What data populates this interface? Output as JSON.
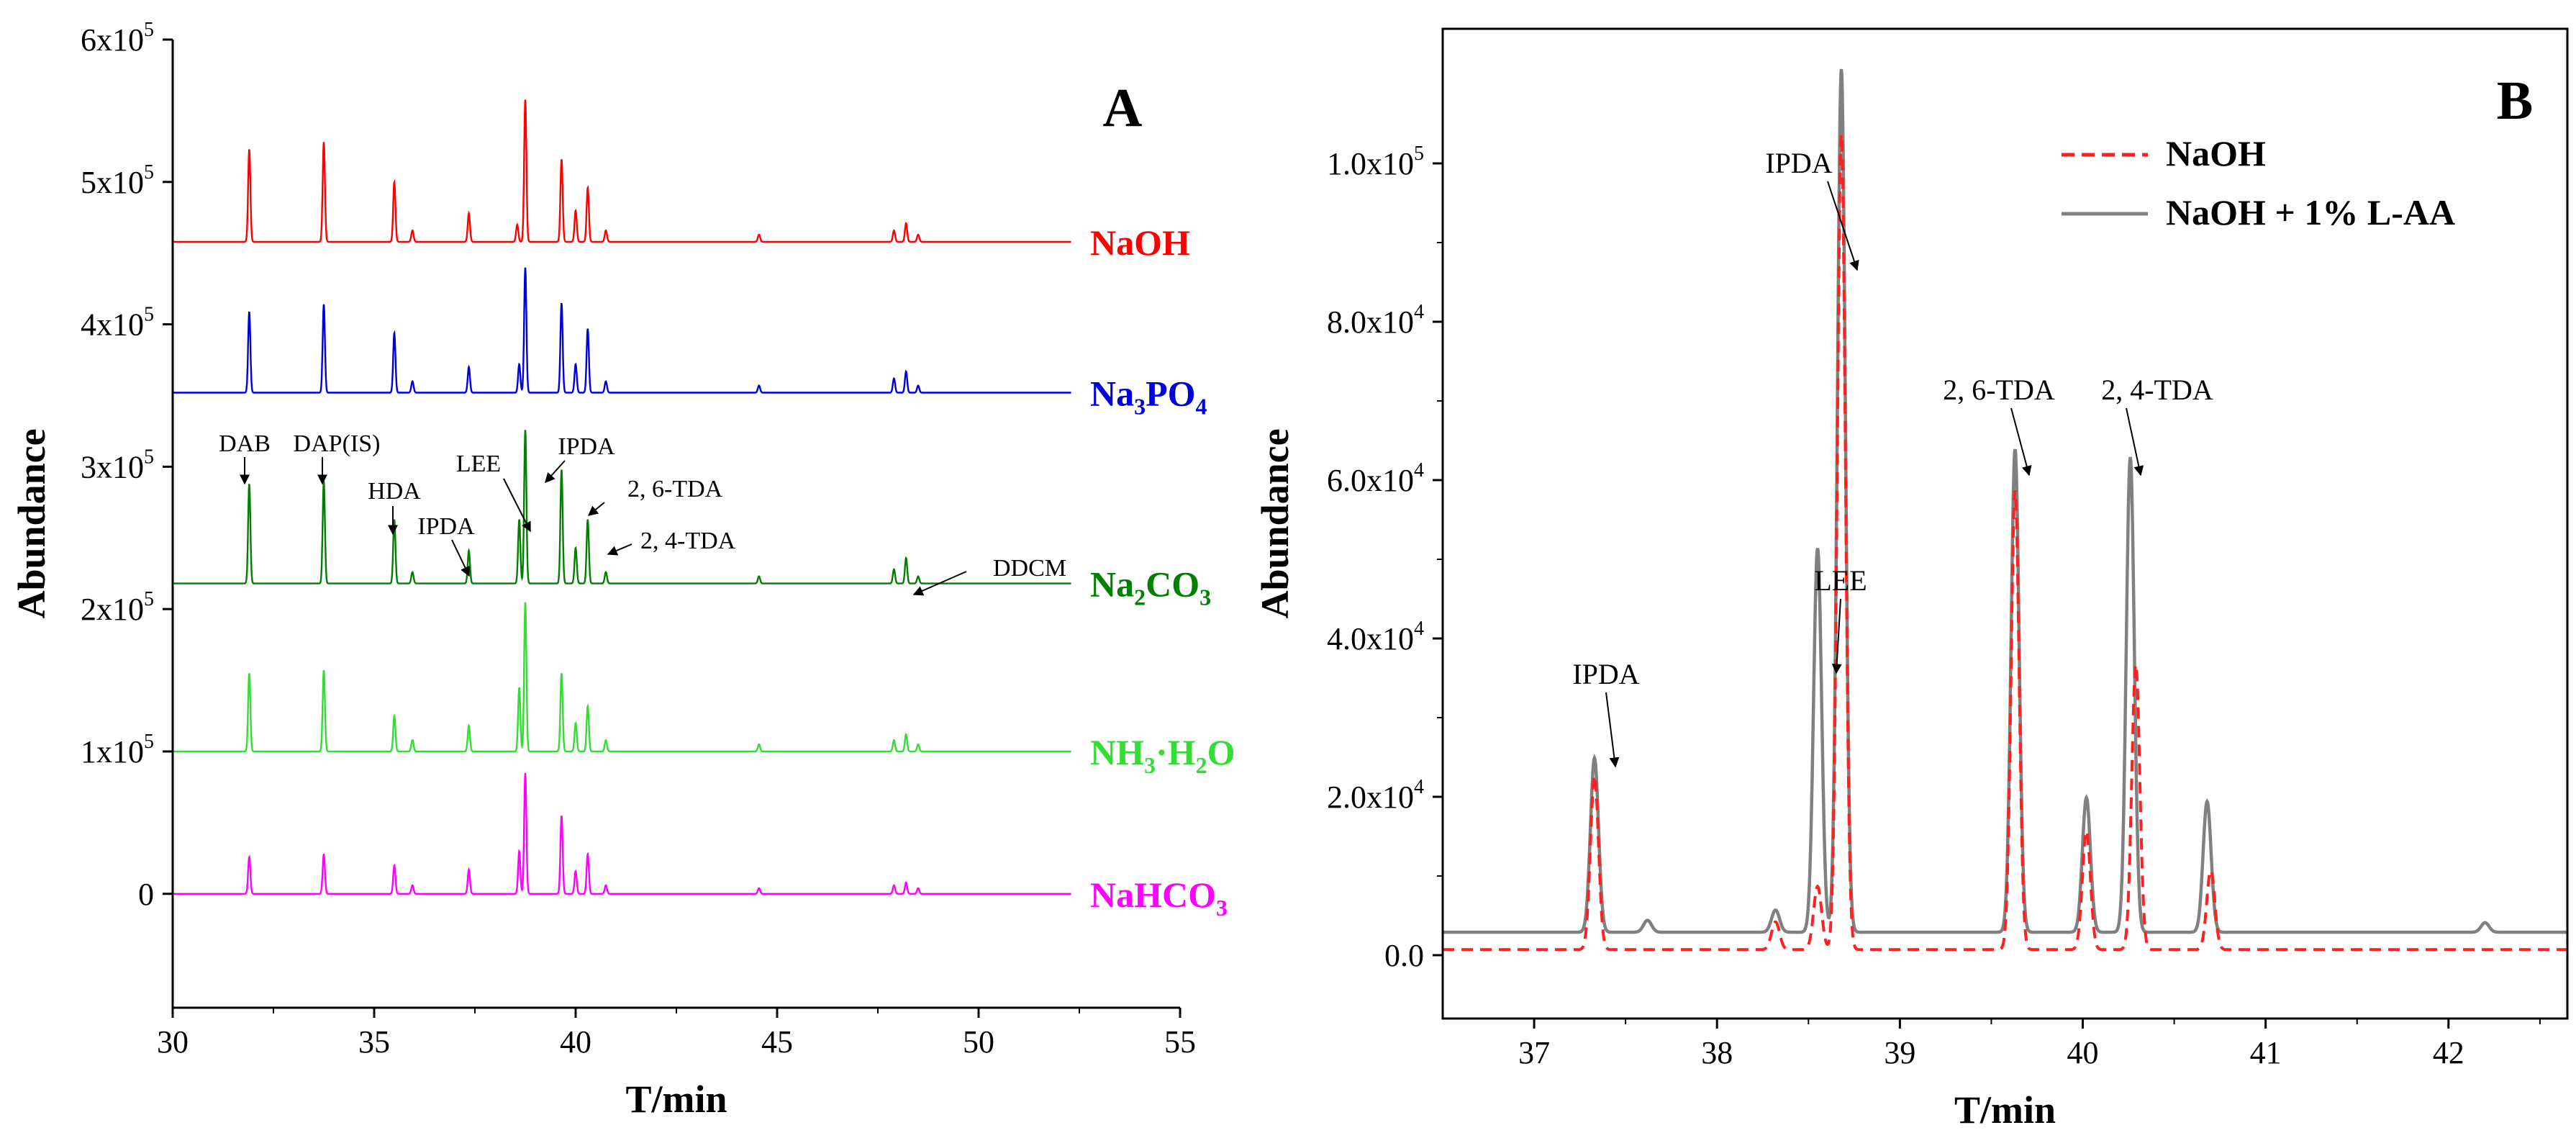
{
  "chart_data": [
    {
      "type": "line",
      "panel_label": "A",
      "xlabel": "T/min",
      "ylabel": "Abundance",
      "xlim": [
        30,
        55
      ],
      "ylim": [
        -80000,
        600000
      ],
      "x_ticks": [
        30,
        35,
        40,
        45,
        50,
        55
      ],
      "x_tick_labels": [
        "30",
        "35",
        "40",
        "45",
        "50",
        "55"
      ],
      "y_ticks": [
        0,
        100000,
        200000,
        300000,
        400000,
        500000,
        600000
      ],
      "y_tick_labels": [
        {
          "base": "0",
          "exp": ""
        },
        {
          "base": "1x10",
          "exp": "5"
        },
        {
          "base": "2x10",
          "exp": "5"
        },
        {
          "base": "3x10",
          "exp": "5"
        },
        {
          "base": "4x10",
          "exp": "5"
        },
        {
          "base": "5x10",
          "exp": "5"
        },
        {
          "base": "6x10",
          "exp": "5"
        }
      ],
      "x_end": 52.3,
      "series": [
        {
          "name": "NaOH",
          "label_main": "NaOH",
          "label_sub": "",
          "label_tail": "",
          "color": "#ff0000",
          "baseline": 458000,
          "peaks": [
            [
              31.9,
              65000
            ],
            [
              33.75,
              70000
            ],
            [
              35.5,
              42000
            ],
            [
              35.95,
              8000
            ],
            [
              37.35,
              20000
            ],
            [
              38.55,
              12000
            ],
            [
              38.75,
              100000
            ],
            [
              39.65,
              58000
            ],
            [
              40.0,
              22000
            ],
            [
              40.3,
              38000
            ],
            [
              40.75,
              8000
            ],
            [
              44.55,
              5000
            ],
            [
              47.9,
              8000
            ],
            [
              48.2,
              13000
            ],
            [
              48.5,
              5000
            ]
          ]
        },
        {
          "name": "Na3PO4",
          "label_main": "Na",
          "label_sub": "3",
          "label_tail": "PO",
          "label_sub2": "4",
          "color": "#0000dd",
          "baseline": 352000,
          "peaks": [
            [
              31.9,
              57000
            ],
            [
              33.75,
              62000
            ],
            [
              35.5,
              42000
            ],
            [
              35.95,
              8000
            ],
            [
              37.35,
              18000
            ],
            [
              38.6,
              20000
            ],
            [
              38.75,
              88000
            ],
            [
              39.65,
              63000
            ],
            [
              40.0,
              20000
            ],
            [
              40.3,
              45000
            ],
            [
              40.75,
              8000
            ],
            [
              44.55,
              5000
            ],
            [
              47.9,
              10000
            ],
            [
              48.2,
              15000
            ],
            [
              48.5,
              5000
            ]
          ]
        },
        {
          "name": "Na2CO3",
          "label_main": "Na",
          "label_sub": "2",
          "label_tail": "CO",
          "label_sub2": "3",
          "color": "#008000",
          "baseline": 218000,
          "peaks": [
            [
              31.9,
              70000
            ],
            [
              33.75,
              72000
            ],
            [
              35.5,
              45000
            ],
            [
              35.95,
              8000
            ],
            [
              37.35,
              23000
            ],
            [
              38.6,
              45000
            ],
            [
              38.75,
              108000
            ],
            [
              39.65,
              80000
            ],
            [
              40.0,
              25000
            ],
            [
              40.3,
              45000
            ],
            [
              40.75,
              8000
            ],
            [
              44.55,
              5000
            ],
            [
              47.9,
              10000
            ],
            [
              48.2,
              18000
            ],
            [
              48.5,
              5000
            ]
          ]
        },
        {
          "name": "NH3·H2O",
          "label_main": "NH",
          "label_sub": "3",
          "label_tail": "·H",
          "label_sub2": "2",
          "label_tail2": "O",
          "color": "#33dd33",
          "baseline": 100000,
          "peaks": [
            [
              31.9,
              55000
            ],
            [
              33.75,
              57000
            ],
            [
              35.5,
              25000
            ],
            [
              35.95,
              8000
            ],
            [
              37.35,
              18000
            ],
            [
              38.6,
              45000
            ],
            [
              38.75,
              105000
            ],
            [
              39.65,
              55000
            ],
            [
              40.0,
              20000
            ],
            [
              40.3,
              32000
            ],
            [
              40.75,
              8000
            ],
            [
              44.55,
              5000
            ],
            [
              47.9,
              8000
            ],
            [
              48.2,
              12000
            ],
            [
              48.5,
              5000
            ]
          ]
        },
        {
          "name": "NaHCO3",
          "label_main": "NaHCO",
          "label_sub": "3",
          "label_tail": "",
          "color": "#ff00ff",
          "baseline": 0,
          "peaks": [
            [
              31.9,
              26000
            ],
            [
              33.75,
              28000
            ],
            [
              35.5,
              20000
            ],
            [
              35.95,
              6000
            ],
            [
              37.35,
              17000
            ],
            [
              38.6,
              30000
            ],
            [
              38.75,
              85000
            ],
            [
              39.65,
              55000
            ],
            [
              40.0,
              16000
            ],
            [
              40.3,
              28000
            ],
            [
              40.75,
              6000
            ],
            [
              44.55,
              4000
            ],
            [
              47.9,
              6000
            ],
            [
              48.2,
              8000
            ],
            [
              48.5,
              4000
            ]
          ]
        }
      ],
      "annotations": [
        {
          "text": "DAB",
          "x": 31.9
        },
        {
          "text": "DAP(IS)",
          "x": 33.75
        },
        {
          "text": "HDA",
          "x": 35.5
        },
        {
          "text": "IPDA",
          "x": 37.35
        },
        {
          "text": "LEE",
          "x": 38.6
        },
        {
          "text": "IPDA",
          "x": 38.75
        },
        {
          "text": "2, 6-TDA",
          "x": 39.65
        },
        {
          "text": "2, 4-TDA",
          "x": 40.3
        },
        {
          "text": "DDCM",
          "x": 48.2
        }
      ]
    },
    {
      "type": "line",
      "panel_label": "B",
      "xlabel": "T/min",
      "ylabel": "Abundance",
      "xlim": [
        36.5,
        42.65
      ],
      "ylim": [
        -8000,
        117000
      ],
      "x_ticks": [
        37,
        38,
        39,
        40,
        41,
        42
      ],
      "x_tick_labels": [
        "37",
        "38",
        "39",
        "40",
        "41",
        "42"
      ],
      "y_ticks": [
        0,
        20000,
        40000,
        60000,
        80000,
        100000
      ],
      "y_tick_labels": [
        {
          "base": "0.0",
          "exp": ""
        },
        {
          "base": "2.0x10",
          "exp": "4"
        },
        {
          "base": "4.0x10",
          "exp": "4"
        },
        {
          "base": "6.0x10",
          "exp": "4"
        },
        {
          "base": "8.0x10",
          "exp": "4"
        },
        {
          "base": "1.0x10",
          "exp": "5"
        }
      ],
      "legend": [
        "NaOH",
        "NaOH + 1% L-AA"
      ],
      "series": [
        {
          "name": "NaOH",
          "color": "#ff2020",
          "dashed": true,
          "baseline": 700,
          "peaks": [
            [
              37.33,
              22000
            ],
            [
              38.32,
              3500
            ],
            [
              38.55,
              8000
            ],
            [
              38.68,
              103000
            ],
            [
              39.63,
              58000
            ],
            [
              40.02,
              15000
            ],
            [
              40.29,
              36000
            ],
            [
              40.7,
              10000
            ]
          ]
        },
        {
          "name": "NaOH + 1% L-AA",
          "color": "#808080",
          "dashed": false,
          "baseline": 2900,
          "peaks": [
            [
              37.33,
              22000
            ],
            [
              37.62,
              1500
            ],
            [
              38.32,
              2800
            ],
            [
              38.55,
              48500
            ],
            [
              38.68,
              109000
            ],
            [
              39.63,
              61000
            ],
            [
              40.02,
              17000
            ],
            [
              40.26,
              60000
            ],
            [
              40.68,
              16500
            ],
            [
              42.2,
              1200
            ]
          ]
        }
      ],
      "annotations": [
        {
          "text": "IPDA",
          "x": 37.33
        },
        {
          "text": "LEE",
          "x": 38.55
        },
        {
          "text": "IPDA",
          "x": 38.68
        },
        {
          "text": "2, 6-TDA",
          "x": 39.63
        },
        {
          "text": "2, 4-TDA",
          "x": 40.26
        }
      ]
    }
  ]
}
